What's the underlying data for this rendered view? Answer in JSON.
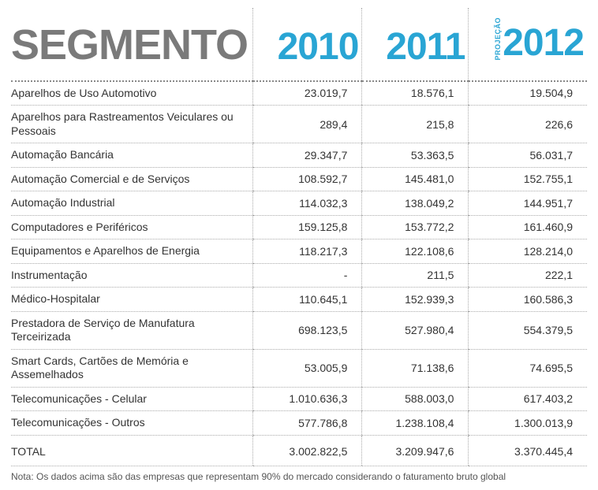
{
  "header": {
    "segmento": "SEGMENTO",
    "y2010": "2010",
    "y2011": "2011",
    "y2012": "2012",
    "projecao": "PROJEÇÃO"
  },
  "rows": [
    {
      "label": "Aparelhos de Uso Automotivo",
      "v2010": "23.019,7",
      "v2011": "18.576,1",
      "v2012": "19.504,9"
    },
    {
      "label": "Aparelhos para Rastreamentos Veiculares ou Pessoais",
      "v2010": "289,4",
      "v2011": "215,8",
      "v2012": "226,6"
    },
    {
      "label": "Automação Bancária",
      "v2010": "29.347,7",
      "v2011": "53.363,5",
      "v2012": "56.031,7"
    },
    {
      "label": "Automação Comercial e de Serviços",
      "v2010": "108.592,7",
      "v2011": "145.481,0",
      "v2012": "152.755,1"
    },
    {
      "label": "Automação Industrial",
      "v2010": "114.032,3",
      "v2011": "138.049,2",
      "v2012": "144.951,7"
    },
    {
      "label": "Computadores e Periféricos",
      "v2010": "159.125,8",
      "v2011": "153.772,2",
      "v2012": "161.460,9"
    },
    {
      "label": "Equipamentos e Aparelhos de Energia",
      "v2010": "118.217,3",
      "v2011": "122.108,6",
      "v2012": "128.214,0"
    },
    {
      "label": "Instrumentação",
      "v2010": "-",
      "v2011": "211,5",
      "v2012": "222,1"
    },
    {
      "label": "Médico-Hospitalar",
      "v2010": "110.645,1",
      "v2011": "152.939,3",
      "v2012": "160.586,3"
    },
    {
      "label": "Prestadora de Serviço de Manufatura Terceirizada",
      "v2010": "698.123,5",
      "v2011": "527.980,4",
      "v2012": "554.379,5"
    },
    {
      "label": "Smart Cards, Cartões de Memória e Assemelhados",
      "v2010": "53.005,9",
      "v2011": "71.138,6",
      "v2012": "74.695,5"
    },
    {
      "label": "Telecomunicações - Celular",
      "v2010": "1.010.636,3",
      "v2011": "588.003,0",
      "v2012": "617.403,2"
    },
    {
      "label": "Telecomunicações - Outros",
      "v2010": "577.786,8",
      "v2011": "1.238.108,4",
      "v2012": "1.300.013,9"
    }
  ],
  "total": {
    "label": "TOTAL",
    "v2010": "3.002.822,5",
    "v2011": "3.209.947,6",
    "v2012": "3.370.445,4"
  },
  "note": "Nota: Os dados acima são das empresas que representam 90% do mercado considerando o faturamento bruto global",
  "style": {
    "seg_color": "#7a7a7a",
    "year_color": "#29a5d4",
    "text_color": "#333333",
    "note_color": "#555555",
    "border_color": "#aaaaaa",
    "seg_fontsize": 54,
    "year_fontsize": 48,
    "body_fontsize": 14,
    "note_fontsize": 12
  }
}
